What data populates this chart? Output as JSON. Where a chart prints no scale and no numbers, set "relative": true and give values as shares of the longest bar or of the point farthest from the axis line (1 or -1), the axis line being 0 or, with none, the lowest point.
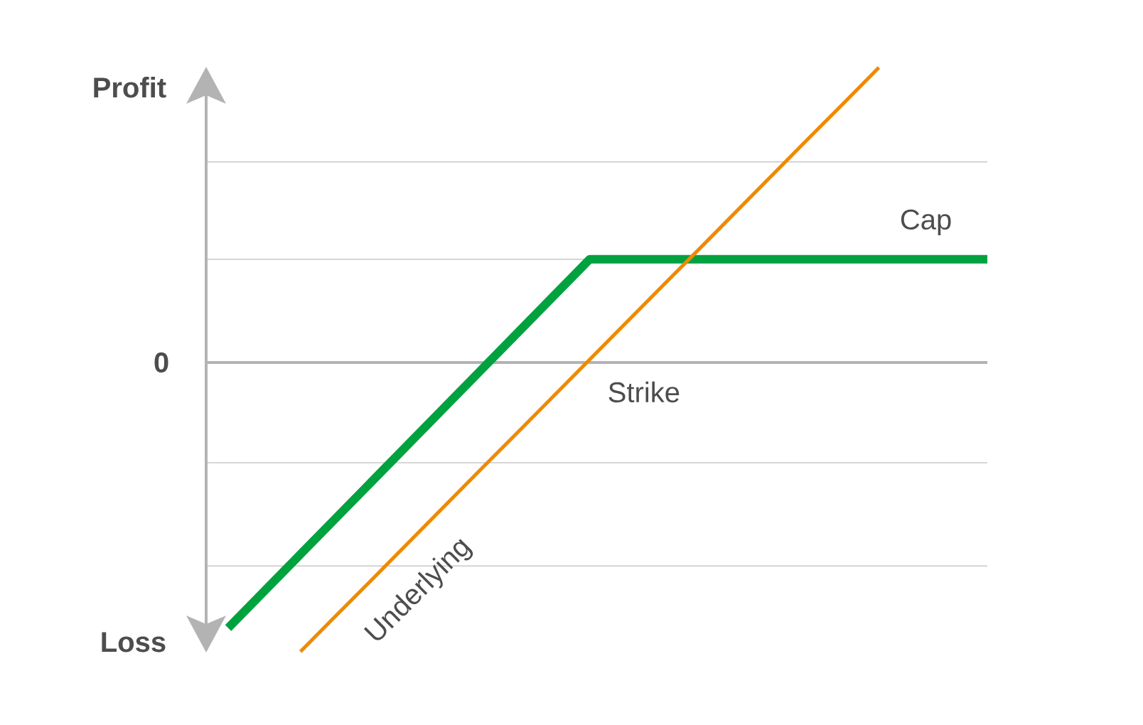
{
  "chart_data": {
    "type": "line",
    "relative": true,
    "categories": [
      null,
      null,
      null,
      null,
      null,
      null,
      null,
      null,
      null,
      null,
      null,
      null,
      null,
      null,
      null,
      null,
      null,
      null,
      null,
      null,
      null,
      null
    ],
    "series": [
      {
        "name": "Cap",
        "color": "#00a23f",
        "values": [
          -0.9,
          -0.775,
          -0.65,
          -0.525,
          -0.4,
          -0.275,
          -0.15,
          -0.025,
          0.1,
          0.225,
          0.35,
          0.35,
          0.35,
          0.35,
          0.35,
          0.35,
          0.35,
          0.35,
          0.35,
          0.35,
          0.35,
          0.35
        ]
      },
      {
        "name": "Underlying",
        "color": "#ef8a00",
        "values": [
          null,
          null,
          -0.98,
          -0.856,
          -0.733,
          -0.609,
          -0.485,
          -0.361,
          -0.238,
          -0.114,
          0.01,
          0.134,
          0.258,
          0.381,
          0.505,
          0.629,
          0.753,
          0.876,
          1.0,
          null,
          null,
          null
        ]
      }
    ],
    "ref_lines": [
      {
        "axis": "y",
        "value": 0,
        "label": "0",
        "color": "#b3b3b3"
      },
      {
        "axis": "y",
        "value": 0.68,
        "color": "#c8c8c8"
      },
      {
        "axis": "y",
        "value": 0.35,
        "color": "#c8c8c8"
      },
      {
        "axis": "y",
        "value": -0.34,
        "color": "#c8c8c8"
      },
      {
        "axis": "y",
        "value": -0.69,
        "color": "#c8c8c8"
      }
    ],
    "annotations": [
      "Profit",
      "Loss",
      "Strike"
    ],
    "line_style": "solid",
    "marker": "none"
  }
}
